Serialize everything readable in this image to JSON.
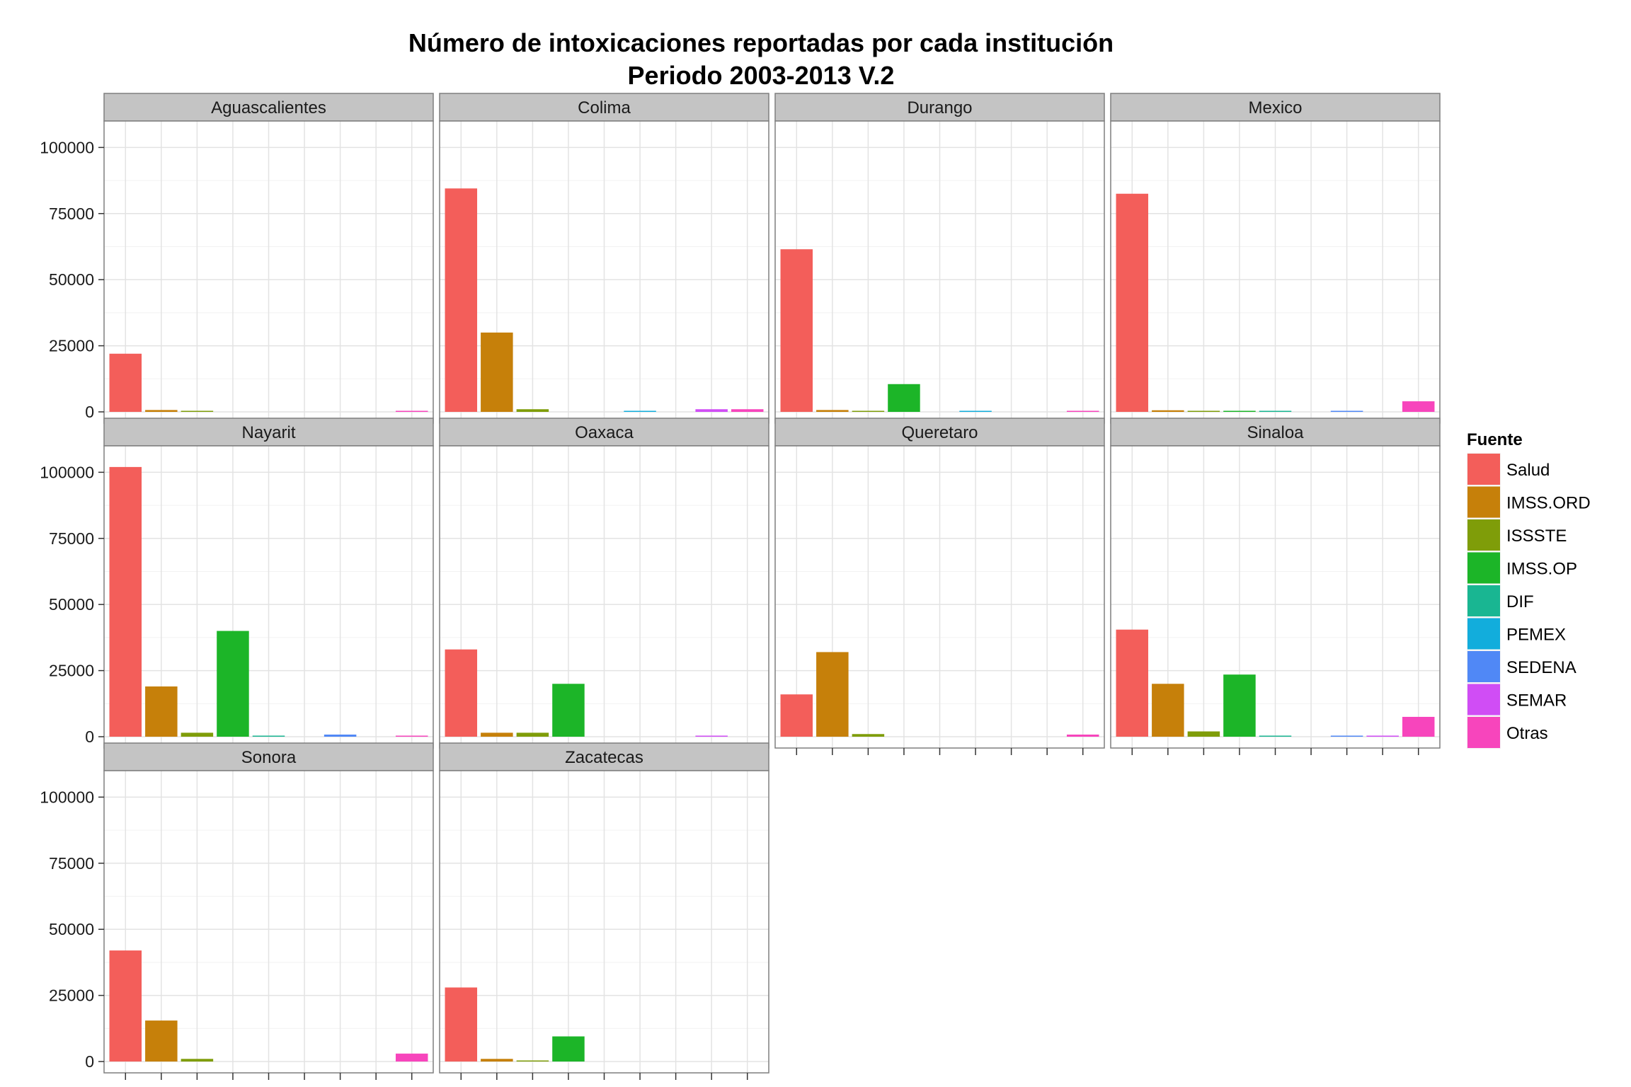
{
  "chart_data": {
    "type": "bar",
    "title": "Número de intoxicaciones reportadas por cada institución",
    "subtitle": "Periodo 2003-2013 V.2",
    "xlabel": "",
    "ylabel": "",
    "ylim": [
      0,
      110000
    ],
    "yticks": [
      0,
      25000,
      50000,
      75000,
      100000
    ],
    "ytick_labels": [
      "0",
      "25000",
      "50000",
      "75000",
      "100000"
    ],
    "grid": true,
    "legend": {
      "title": "Fuente",
      "position": "right"
    },
    "series": [
      {
        "name": "Salud",
        "color": "#F35E5A"
      },
      {
        "name": "IMSS.ORD",
        "color": "#C6800A"
      },
      {
        "name": "ISSSTE",
        "color": "#7F9D09"
      },
      {
        "name": "IMSS.OP",
        "color": "#1CB528"
      },
      {
        "name": "DIF",
        "color": "#19B692"
      },
      {
        "name": "PEMEX",
        "color": "#12ADDC"
      },
      {
        "name": "SEDENA",
        "color": "#5088F6"
      },
      {
        "name": "SEMAR",
        "color": "#D04DF5"
      },
      {
        "name": "Otras",
        "color": "#F745BC"
      }
    ],
    "panels": [
      {
        "name": "Aguascalientes",
        "values": [
          22000,
          700,
          300,
          0,
          0,
          0,
          0,
          0,
          400
        ]
      },
      {
        "name": "Colima",
        "values": [
          84500,
          30000,
          1000,
          0,
          0,
          400,
          0,
          1000,
          1000
        ]
      },
      {
        "name": "Durango",
        "values": [
          61500,
          700,
          300,
          10500,
          0,
          300,
          0,
          0,
          300
        ]
      },
      {
        "name": "Mexico",
        "values": [
          82500,
          600,
          300,
          300,
          300,
          0,
          300,
          0,
          4000
        ]
      },
      {
        "name": "Nayarit",
        "values": [
          102000,
          19000,
          1500,
          40000,
          400,
          0,
          800,
          0,
          300
        ]
      },
      {
        "name": "Oaxaca",
        "values": [
          33000,
          1500,
          1500,
          20000,
          0,
          0,
          0,
          400,
          0
        ]
      },
      {
        "name": "Queretaro",
        "values": [
          16000,
          32000,
          1000,
          0,
          0,
          0,
          0,
          0,
          800
        ]
      },
      {
        "name": "Sinaloa",
        "values": [
          40500,
          20000,
          2000,
          23500,
          400,
          0,
          300,
          300,
          7500
        ]
      },
      {
        "name": "Sonora",
        "values": [
          42000,
          15500,
          1000,
          0,
          0,
          0,
          0,
          0,
          3000
        ]
      },
      {
        "name": "Zacatecas",
        "values": [
          28000,
          1000,
          200,
          9500,
          0,
          0,
          0,
          0,
          0
        ]
      }
    ]
  }
}
